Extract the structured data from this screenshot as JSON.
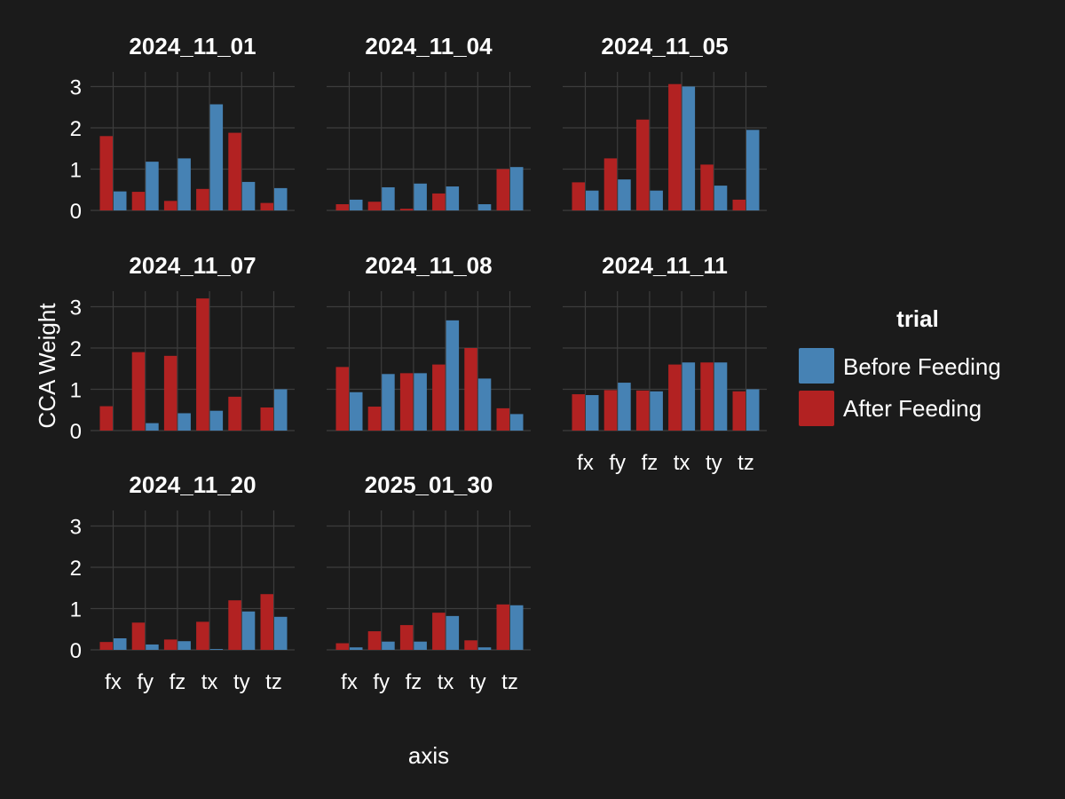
{
  "chart_data": {
    "type": "bar",
    "xlabel": "axis",
    "ylabel": "CCA Weight",
    "ylim": [
      0,
      3.4
    ],
    "yticks": [
      0,
      1,
      2,
      3
    ],
    "categories": [
      "fx",
      "fy",
      "fz",
      "tx",
      "ty",
      "tz"
    ],
    "legend": {
      "title": "trial",
      "placement": "right",
      "entries": [
        {
          "name": "Before Feeding",
          "color": "#4682b4"
        },
        {
          "name": "After Feeding",
          "color": "#b22222"
        }
      ]
    },
    "grid": true,
    "facets": [
      {
        "title": "2024_11_01",
        "series": [
          {
            "name": "After Feeding",
            "values": [
              1.8,
              0.45,
              0.23,
              0.52,
              1.88,
              0.18
            ]
          },
          {
            "name": "Before Feeding",
            "values": [
              0.46,
              1.18,
              1.26,
              2.57,
              0.69,
              0.54
            ]
          }
        ]
      },
      {
        "title": "2024_11_04",
        "series": [
          {
            "name": "After Feeding",
            "values": [
              0.15,
              0.21,
              0.04,
              0.41,
              0.0,
              1.0
            ]
          },
          {
            "name": "Before Feeding",
            "values": [
              0.26,
              0.56,
              0.65,
              0.58,
              0.15,
              1.05
            ]
          }
        ]
      },
      {
        "title": "2024_11_05",
        "series": [
          {
            "name": "After Feeding",
            "values": [
              0.68,
              1.26,
              2.2,
              3.06,
              1.11,
              0.26
            ]
          },
          {
            "name": "Before Feeding",
            "values": [
              0.48,
              0.75,
              0.48,
              3.0,
              0.6,
              1.95
            ]
          }
        ]
      },
      {
        "title": "2024_11_07",
        "series": [
          {
            "name": "After Feeding",
            "values": [
              0.59,
              1.9,
              1.81,
              3.2,
              0.82,
              0.56
            ]
          },
          {
            "name": "Before Feeding",
            "values": [
              0.0,
              0.18,
              0.42,
              0.48,
              0.0,
              1.0
            ]
          }
        ]
      },
      {
        "title": "2024_11_08",
        "series": [
          {
            "name": "After Feeding",
            "values": [
              1.54,
              0.58,
              1.39,
              1.6,
              2.0,
              0.54
            ]
          },
          {
            "name": "Before Feeding",
            "values": [
              0.93,
              1.37,
              1.39,
              2.67,
              1.26,
              0.4
            ]
          }
        ]
      },
      {
        "title": "2024_11_11",
        "series": [
          {
            "name": "After Feeding",
            "values": [
              0.88,
              0.98,
              0.97,
              1.6,
              1.65,
              0.95
            ]
          },
          {
            "name": "Before Feeding",
            "values": [
              0.86,
              1.16,
              0.95,
              1.65,
              1.65,
              1.0
            ]
          }
        ]
      },
      {
        "title": "2024_11_20",
        "series": [
          {
            "name": "After Feeding",
            "values": [
              0.19,
              0.66,
              0.25,
              0.68,
              1.2,
              1.35
            ]
          },
          {
            "name": "Before Feeding",
            "values": [
              0.28,
              0.13,
              0.21,
              0.02,
              0.93,
              0.8
            ]
          }
        ]
      },
      {
        "title": "2025_01_30",
        "series": [
          {
            "name": "After Feeding",
            "values": [
              0.16,
              0.45,
              0.6,
              0.9,
              0.23,
              1.1
            ]
          },
          {
            "name": "Before Feeding",
            "values": [
              0.06,
              0.2,
              0.2,
              0.82,
              0.06,
              1.08
            ]
          }
        ]
      }
    ]
  }
}
